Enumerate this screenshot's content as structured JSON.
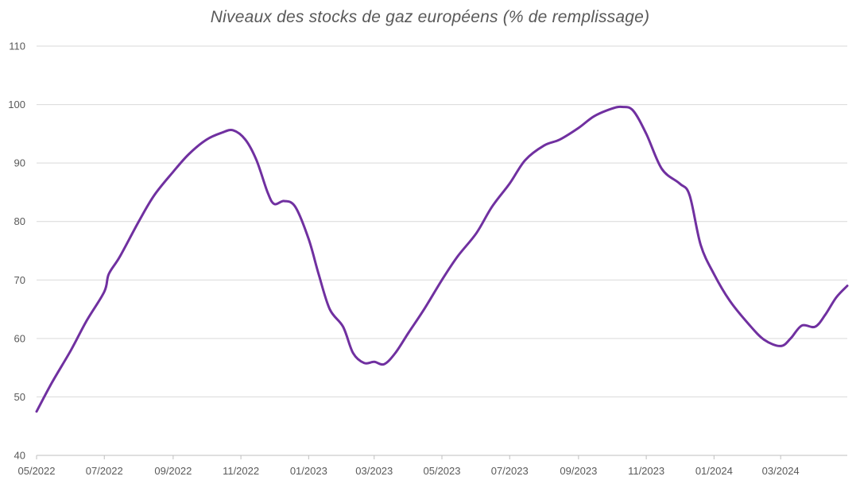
{
  "chart_data": {
    "type": "line",
    "title": "Niveaux des stocks de gaz européens (% de remplissage)",
    "xlabel": "",
    "ylabel": "",
    "ylim": [
      40,
      110
    ],
    "yticks": [
      "40",
      "50",
      "60",
      "70",
      "80",
      "90",
      "100",
      "110"
    ],
    "xticks": [
      "05/2022",
      "07/2022",
      "09/2022",
      "11/2022",
      "01/2023",
      "03/2023",
      "05/2023",
      "07/2023",
      "09/2023",
      "11/2023",
      "01/2024",
      "03/2024"
    ],
    "xlim": [
      "2022-05-01",
      "2024-04-30"
    ],
    "grid": true,
    "legend": "none",
    "series": [
      {
        "color": "#7030a0",
        "points": [
          [
            "2022-05-01",
            47.5
          ],
          [
            "2022-05-15",
            52.5
          ],
          [
            "2022-06-01",
            58.0
          ],
          [
            "2022-06-15",
            63.0
          ],
          [
            "2022-07-01",
            68.0
          ],
          [
            "2022-07-05",
            71.0
          ],
          [
            "2022-07-15",
            74.0
          ],
          [
            "2022-08-01",
            80.0
          ],
          [
            "2022-08-15",
            84.5
          ],
          [
            "2022-09-01",
            88.5
          ],
          [
            "2022-09-15",
            91.5
          ],
          [
            "2022-10-01",
            94.0
          ],
          [
            "2022-10-15",
            95.2
          ],
          [
            "2022-10-25",
            95.6
          ],
          [
            "2022-11-05",
            94.0
          ],
          [
            "2022-11-15",
            90.5
          ],
          [
            "2022-11-25",
            85.0
          ],
          [
            "2022-12-01",
            83.0
          ],
          [
            "2022-12-10",
            83.5
          ],
          [
            "2022-12-20",
            82.5
          ],
          [
            "2023-01-01",
            77.0
          ],
          [
            "2023-01-10",
            71.0
          ],
          [
            "2023-01-20",
            65.0
          ],
          [
            "2023-02-01",
            62.0
          ],
          [
            "2023-02-10",
            57.5
          ],
          [
            "2023-02-20",
            55.8
          ],
          [
            "2023-03-01",
            56.0
          ],
          [
            "2023-03-10",
            55.6
          ],
          [
            "2023-03-20",
            57.5
          ],
          [
            "2023-04-01",
            61.0
          ],
          [
            "2023-04-15",
            65.0
          ],
          [
            "2023-05-01",
            70.0
          ],
          [
            "2023-05-15",
            74.0
          ],
          [
            "2023-06-01",
            78.0
          ],
          [
            "2023-06-15",
            82.5
          ],
          [
            "2023-07-01",
            86.5
          ],
          [
            "2023-07-15",
            90.5
          ],
          [
            "2023-08-01",
            93.0
          ],
          [
            "2023-08-15",
            94.0
          ],
          [
            "2023-09-01",
            96.0
          ],
          [
            "2023-09-15",
            98.0
          ],
          [
            "2023-10-01",
            99.3
          ],
          [
            "2023-10-10",
            99.6
          ],
          [
            "2023-10-20",
            99.0
          ],
          [
            "2023-11-01",
            95.0
          ],
          [
            "2023-11-15",
            89.0
          ],
          [
            "2023-12-01",
            86.5
          ],
          [
            "2023-12-10",
            84.5
          ],
          [
            "2023-12-20",
            76.0
          ],
          [
            "2024-01-01",
            71.0
          ],
          [
            "2024-01-15",
            66.5
          ],
          [
            "2024-02-01",
            62.5
          ],
          [
            "2024-02-15",
            59.8
          ],
          [
            "2024-03-01",
            58.7
          ],
          [
            "2024-03-10",
            60.0
          ],
          [
            "2024-03-20",
            62.2
          ],
          [
            "2024-04-01",
            62.0
          ],
          [
            "2024-04-10",
            64.0
          ],
          [
            "2024-04-20",
            67.0
          ],
          [
            "2024-04-30",
            69.0
          ]
        ]
      }
    ]
  }
}
